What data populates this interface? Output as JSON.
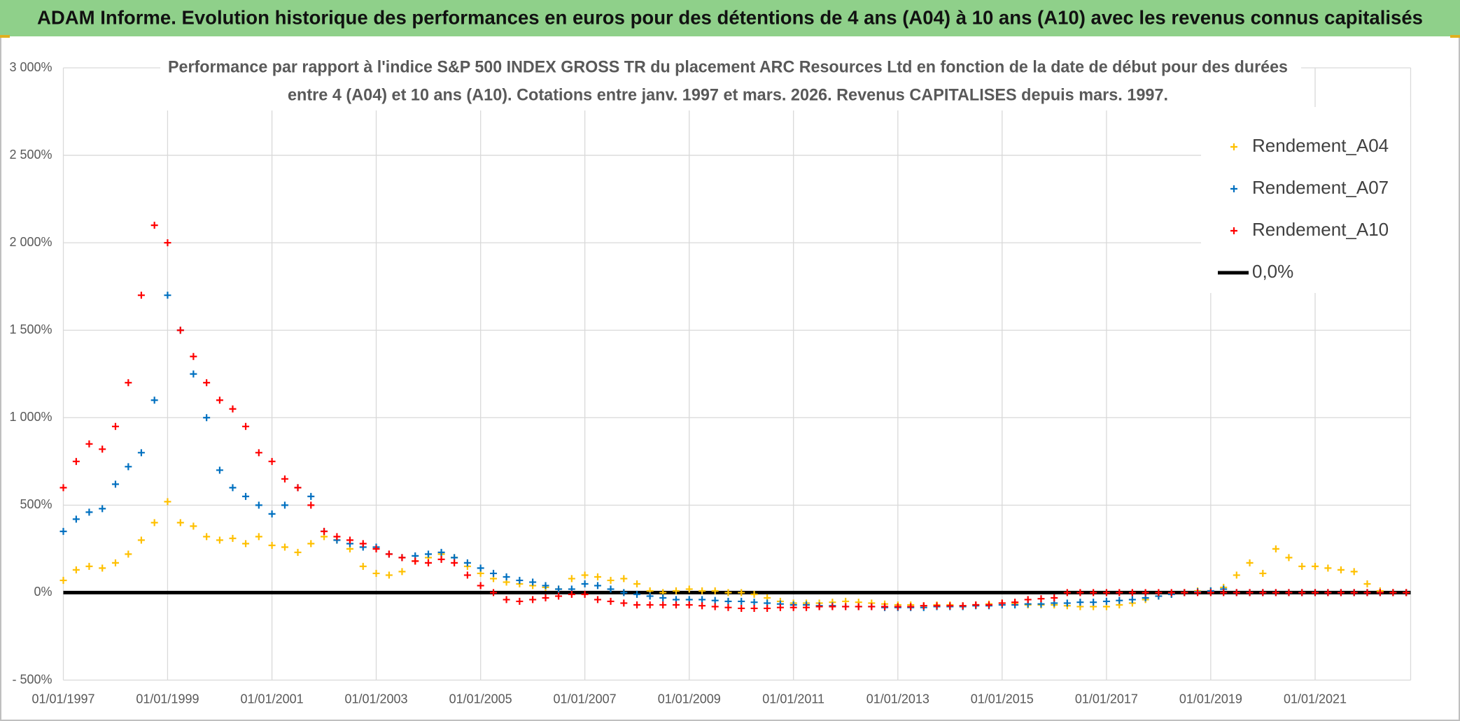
{
  "chart_data": {
    "type": "scatter",
    "title": "ADAM Informe. Evolution historique des performances en euros pour des détentions de 4 ans (A04) à 10 ans (A10) avec les revenus connus capitalisés",
    "subtitle": [
      "Performance par rapport à l'indice S&P 500 INDEX GROSS TR  du placement ARC Resources Ltd en fonction de la date de début pour des durées",
      "entre 4 (A04) et 10 ans (A10). Cotations entre janv. 1997 et mars. 2026. Revenus CAPITALISES depuis mars. 1997."
    ],
    "x": [
      "1997-01-01",
      "1997-04-01",
      "1997-07-01",
      "1997-10-01",
      "1998-01-01",
      "1998-04-01",
      "1998-07-01",
      "1998-10-01",
      "1999-01-01",
      "1999-04-01",
      "1999-07-01",
      "1999-10-01",
      "2000-01-01",
      "2000-04-01",
      "2000-07-01",
      "2000-10-01",
      "2001-01-01",
      "2001-04-01",
      "2001-07-01",
      "2001-10-01",
      "2002-01-01",
      "2002-04-01",
      "2002-07-01",
      "2002-10-01",
      "2003-01-01",
      "2003-04-01",
      "2003-07-01",
      "2003-10-01",
      "2004-01-01",
      "2004-04-01",
      "2004-07-01",
      "2004-10-01",
      "2005-01-01",
      "2005-04-01",
      "2005-07-01",
      "2005-10-01",
      "2006-01-01",
      "2006-04-01",
      "2006-07-01",
      "2006-10-01",
      "2007-01-01",
      "2007-04-01",
      "2007-07-01",
      "2007-10-01",
      "2008-01-01",
      "2008-04-01",
      "2008-07-01",
      "2008-10-01",
      "2009-01-01",
      "2009-04-01",
      "2009-07-01",
      "2009-10-01",
      "2010-01-01",
      "2010-04-01",
      "2010-07-01",
      "2010-10-01",
      "2011-01-01",
      "2011-04-01",
      "2011-07-01",
      "2011-10-01",
      "2012-01-01",
      "2012-04-01",
      "2012-07-01",
      "2012-10-01",
      "2013-01-01",
      "2013-04-01",
      "2013-07-01",
      "2013-10-01",
      "2014-01-01",
      "2014-04-01",
      "2014-07-01",
      "2014-10-01",
      "2015-01-01",
      "2015-04-01",
      "2015-07-01",
      "2015-10-01",
      "2016-01-01",
      "2016-04-01",
      "2016-07-01",
      "2016-10-01",
      "2017-01-01",
      "2017-04-01",
      "2017-07-01",
      "2017-10-01",
      "2018-01-01",
      "2018-04-01",
      "2018-07-01",
      "2018-10-01",
      "2019-01-01",
      "2019-04-01",
      "2019-07-01",
      "2019-10-01",
      "2020-01-01",
      "2020-04-01",
      "2020-07-01",
      "2020-10-01",
      "2021-01-01",
      "2021-04-01",
      "2021-07-01",
      "2021-10-01",
      "2022-01-01",
      "2022-04-01",
      "2022-07-01",
      "2022-10-01"
    ],
    "series": [
      {
        "name": "Rendement_A04",
        "color": "#ffc000",
        "values": [
          70,
          130,
          150,
          140,
          170,
          220,
          300,
          400,
          520,
          400,
          380,
          320,
          300,
          310,
          280,
          320,
          270,
          260,
          230,
          280,
          320,
          300,
          250,
          150,
          110,
          100,
          120,
          180,
          200,
          220,
          200,
          150,
          110,
          80,
          60,
          50,
          40,
          30,
          20,
          80,
          100,
          90,
          70,
          80,
          50,
          10,
          0,
          10,
          20,
          10,
          10,
          0,
          0,
          -10,
          -30,
          -50,
          -60,
          -60,
          -60,
          -55,
          -50,
          -55,
          -60,
          -65,
          -70,
          -70,
          -75,
          -70,
          -70,
          -75,
          -70,
          -65,
          -60,
          -60,
          -70,
          -70,
          -70,
          -75,
          -80,
          -80,
          -80,
          -70,
          -60,
          -40,
          -20,
          -10,
          0,
          10,
          10,
          30,
          100,
          170,
          110,
          250,
          200,
          150,
          150,
          140,
          130,
          120,
          50,
          10,
          0,
          0
        ]
      },
      {
        "name": "Rendement_A07",
        "color": "#0070c0",
        "values": [
          350,
          420,
          460,
          480,
          620,
          720,
          800,
          1100,
          1700,
          1500,
          1250,
          1000,
          700,
          600,
          550,
          500,
          450,
          500,
          600,
          550,
          350,
          300,
          280,
          260,
          260,
          220,
          200,
          210,
          220,
          230,
          200,
          170,
          140,
          110,
          90,
          70,
          60,
          40,
          20,
          20,
          50,
          40,
          20,
          0,
          -10,
          -20,
          -30,
          -40,
          -40,
          -40,
          -45,
          -50,
          -50,
          -55,
          -60,
          -65,
          -70,
          -70,
          -75,
          -75,
          -80,
          -80,
          -80,
          -85,
          -85,
          -85,
          -85,
          -80,
          -80,
          -80,
          -75,
          -75,
          -70,
          -70,
          -65,
          -65,
          -60,
          -60,
          -55,
          -55,
          -50,
          -45,
          -40,
          -30,
          -20,
          -10,
          0,
          5,
          10,
          20,
          0,
          0,
          0,
          0,
          0,
          0,
          0,
          0,
          0,
          0,
          0,
          0,
          0,
          0
        ]
      },
      {
        "name": "Rendement_A10",
        "color": "#ff0000",
        "values": [
          600,
          750,
          850,
          820,
          950,
          1200,
          1700,
          2100,
          2000,
          1500,
          1350,
          1200,
          1100,
          1050,
          950,
          800,
          750,
          650,
          600,
          500,
          350,
          320,
          300,
          280,
          250,
          220,
          200,
          180,
          170,
          190,
          170,
          100,
          40,
          0,
          -40,
          -50,
          -40,
          -30,
          -20,
          -10,
          -10,
          -40,
          -50,
          -60,
          -70,
          -70,
          -70,
          -70,
          -70,
          -75,
          -80,
          -85,
          -90,
          -90,
          -90,
          -85,
          -85,
          -85,
          -80,
          -80,
          -80,
          -80,
          -80,
          -80,
          -80,
          -80,
          -75,
          -75,
          -75,
          -75,
          -70,
          -70,
          -60,
          -55,
          -40,
          -35,
          -30,
          0,
          0,
          0,
          0,
          0,
          0,
          0,
          0,
          0,
          0,
          0,
          0,
          0,
          0,
          0,
          0,
          0,
          0,
          0,
          0,
          0,
          0,
          0,
          0,
          0,
          0,
          0
        ]
      }
    ],
    "reference_line": {
      "name": "0,0%",
      "value": 0,
      "color": "#000000"
    },
    "xlim": [
      "1997-01-01",
      "2022-11-01"
    ],
    "xticks": [
      {
        "value": "1997-01-01",
        "label": "01/01/1997"
      },
      {
        "value": "1999-01-01",
        "label": "01/01/1999"
      },
      {
        "value": "2001-01-01",
        "label": "01/01/2001"
      },
      {
        "value": "2003-01-01",
        "label": "01/01/2003"
      },
      {
        "value": "2005-01-01",
        "label": "01/01/2005"
      },
      {
        "value": "2007-01-01",
        "label": "01/01/2007"
      },
      {
        "value": "2009-01-01",
        "label": "01/01/2009"
      },
      {
        "value": "2011-01-01",
        "label": "01/01/2011"
      },
      {
        "value": "2013-01-01",
        "label": "01/01/2013"
      },
      {
        "value": "2015-01-01",
        "label": "01/01/2015"
      },
      {
        "value": "2017-01-01",
        "label": "01/01/2017"
      },
      {
        "value": "2019-01-01",
        "label": "01/01/2019"
      },
      {
        "value": "2021-01-01",
        "label": "01/01/2021"
      }
    ],
    "ylim": [
      -500,
      3000
    ],
    "yticks": [
      {
        "value": -500,
        "label": "- 500%"
      },
      {
        "value": 0,
        "label": "0%"
      },
      {
        "value": 500,
        "label": "500%"
      },
      {
        "value": 1000,
        "label": "1 000%"
      },
      {
        "value": 1500,
        "label": "1 500%"
      },
      {
        "value": 2000,
        "label": "2 000%"
      },
      {
        "value": 2500,
        "label": "2 500%"
      },
      {
        "value": 3000,
        "label": "3 000%"
      }
    ],
    "grid": true,
    "legend": "top-right"
  }
}
